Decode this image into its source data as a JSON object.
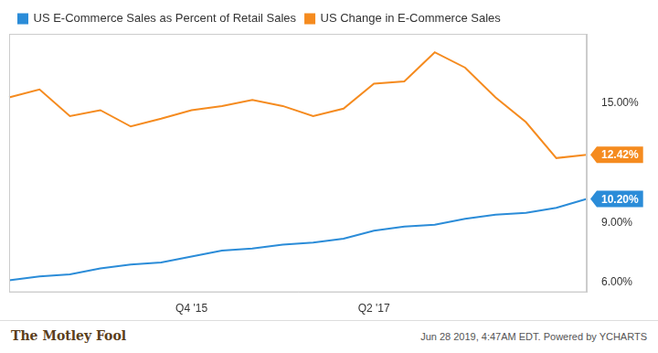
{
  "chart_data": {
    "type": "line",
    "categories": [
      null,
      null,
      null,
      null,
      null,
      null,
      "Q4 '15",
      null,
      null,
      null,
      null,
      null,
      "Q2 '17",
      null,
      null,
      null,
      null,
      null,
      null,
      null
    ],
    "series": [
      {
        "name": "US E-Commerce Sales as Percent of Retail Sales",
        "color": "#2b8cd8",
        "values": [
          6.1,
          6.3,
          6.4,
          6.7,
          6.9,
          7.0,
          7.3,
          7.6,
          7.7,
          7.9,
          8.0,
          8.2,
          8.6,
          8.8,
          8.9,
          9.2,
          9.4,
          9.5,
          9.75,
          10.2
        ],
        "value_labels": [
          null,
          null,
          null,
          null,
          null,
          null,
          null,
          null,
          null,
          null,
          null,
          null,
          null,
          null,
          null,
          null,
          null,
          null,
          null,
          "10.20%"
        ]
      },
      {
        "name": "US Change in E-Commerce Sales",
        "color": "#f58b1f",
        "values": [
          15.3,
          15.7,
          14.36,
          14.66,
          13.84,
          14.23,
          14.66,
          14.87,
          15.17,
          14.87,
          14.36,
          14.74,
          15.99,
          16.11,
          17.57,
          16.8,
          15.3,
          14.06,
          12.25,
          12.42
        ],
        "value_labels": [
          null,
          null,
          null,
          null,
          null,
          null,
          null,
          null,
          null,
          null,
          null,
          null,
          null,
          null,
          null,
          null,
          null,
          null,
          null,
          "12.42%"
        ]
      }
    ],
    "ylim": [
      5.5,
      18.5
    ],
    "yticks": [
      {
        "value": 6,
        "label": "6.00%"
      },
      {
        "value": 9,
        "label": "9.00%"
      },
      {
        "value": 15,
        "label": "15.00%"
      }
    ],
    "grid": false,
    "legend": "top-left",
    "annotations": [
      "The Motley Fool",
      "Jun 28 2019, 4:47AM EDT. Powered by YCHARTS"
    ]
  }
}
